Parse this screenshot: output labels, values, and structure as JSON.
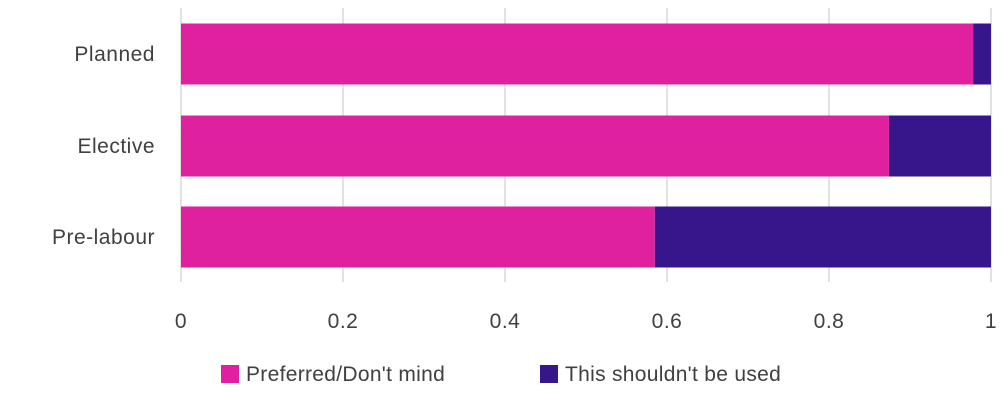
{
  "chart_data": {
    "type": "bar",
    "orientation": "horizontal",
    "stacked": true,
    "categories": [
      "Planned",
      "Elective",
      "Pre-labour"
    ],
    "series": [
      {
        "name": "Preferred/Don't mind",
        "color": "#e0219f",
        "values": [
          0.978,
          0.874,
          0.585
        ]
      },
      {
        "name": "This shouldn't be used",
        "color": "#36168a",
        "values": [
          0.022,
          0.126,
          0.415
        ]
      }
    ],
    "xlim": [
      0,
      1
    ],
    "x_ticks": [
      "0",
      "0.2",
      "0.4",
      "0.6",
      "0.8",
      "1"
    ],
    "grid": true,
    "legend_position": "bottom"
  }
}
